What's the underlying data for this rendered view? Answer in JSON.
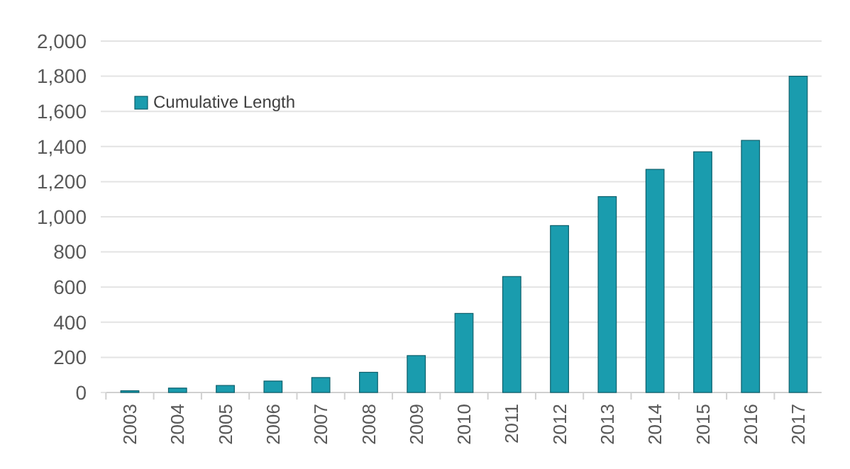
{
  "chart_data": {
    "type": "bar",
    "categories": [
      "2003",
      "2004",
      "2005",
      "2006",
      "2007",
      "2008",
      "2009",
      "2010",
      "2011",
      "2012",
      "2013",
      "2014",
      "2015",
      "2016",
      "2017"
    ],
    "series": [
      {
        "name": "Cumulative Length",
        "color": "#1a9cae",
        "values": [
          10,
          25,
          40,
          65,
          85,
          115,
          210,
          450,
          660,
          950,
          1115,
          1270,
          1370,
          1435,
          1800
        ]
      }
    ],
    "ylim": [
      0,
      2000
    ],
    "yticks": [
      {
        "value": 0,
        "label": "0"
      },
      {
        "value": 200,
        "label": "200"
      },
      {
        "value": 400,
        "label": "400"
      },
      {
        "value": 600,
        "label": "600"
      },
      {
        "value": 800,
        "label": "800"
      },
      {
        "value": 1000,
        "label": "1,000"
      },
      {
        "value": 1200,
        "label": "1,200"
      },
      {
        "value": 1400,
        "label": "1,400"
      },
      {
        "value": 1600,
        "label": "1,600"
      },
      {
        "value": 1800,
        "label": "1,800"
      },
      {
        "value": 2000,
        "label": "2,000"
      }
    ],
    "grid": "y",
    "legend": "top left"
  }
}
